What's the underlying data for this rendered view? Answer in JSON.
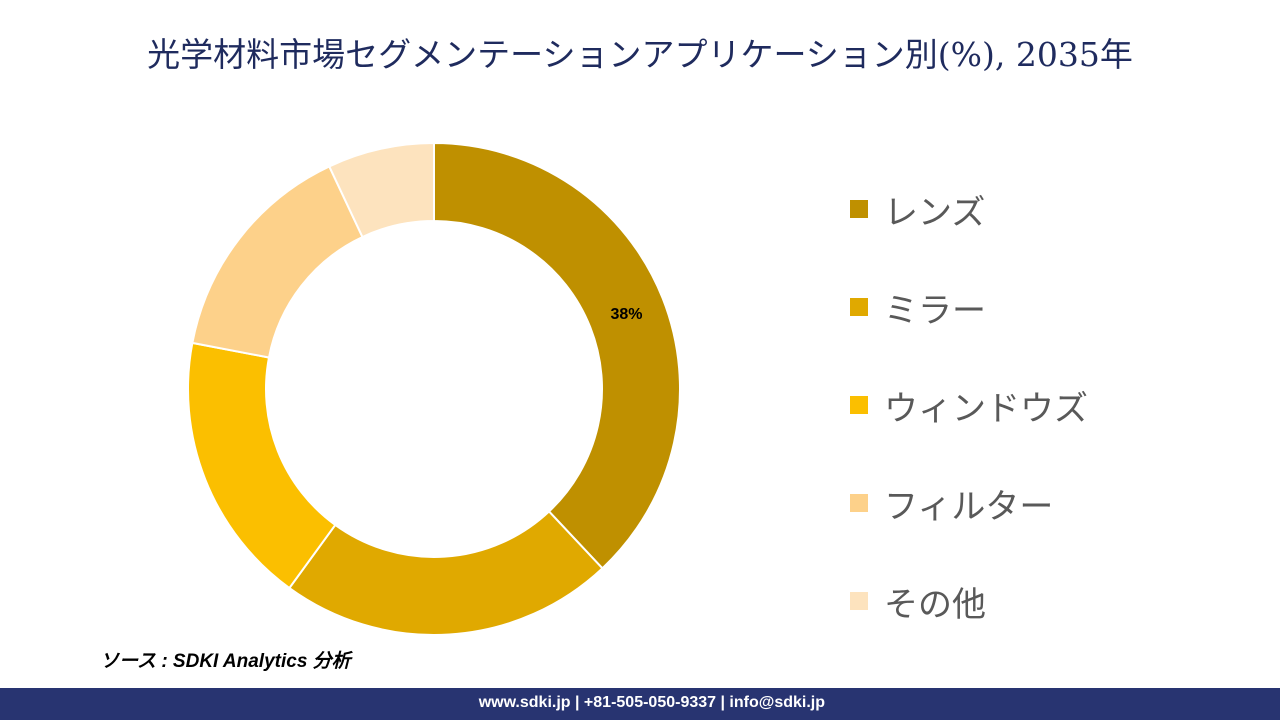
{
  "title": "光学材料市場セグメンテーションアプリケーション別(%), 2035年",
  "chart_data": {
    "type": "pie",
    "subtype": "donut",
    "title": "光学材料市場セグメンテーションアプリケーション別(%), 2035年",
    "categories": [
      "レンズ",
      "ミラー",
      "ウィンドウズ",
      "フィルター",
      "その他"
    ],
    "values": [
      38,
      22,
      18,
      15,
      7
    ],
    "colors": [
      "#BF9000",
      "#E0A900",
      "#FBBF00",
      "#FDD18A",
      "#FDE3BE"
    ],
    "data_labels": [
      "38%",
      "",
      "",
      "",
      ""
    ],
    "legend_position": "right"
  },
  "source": "ソース : SDKI Analytics 分析",
  "footer": "www.sdki.jp | +81-505-050-9337 | info@sdki.jp"
}
